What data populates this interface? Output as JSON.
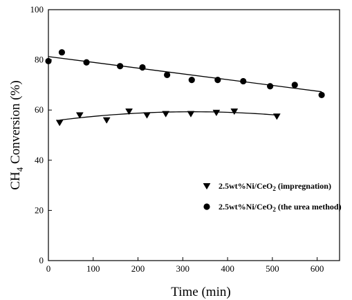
{
  "chart_data": {
    "type": "scatter",
    "xlabel": "Time (min)",
    "ylabel_parts": {
      "ch": "CH",
      "sub": "4",
      "rest": " Conversion (%)"
    },
    "xlim": [
      0,
      650
    ],
    "ylim": [
      0,
      100
    ],
    "xticks": [
      0,
      100,
      200,
      300,
      400,
      500,
      600
    ],
    "yticks": [
      0,
      20,
      40,
      60,
      80,
      100
    ],
    "grid": false,
    "legend_placement": "lower-right",
    "series": [
      {
        "name": "2.5wt%Ni/CeO2 (impregnation)",
        "name_parts": {
          "pre": "2.5wt%Ni/CeO",
          "sub": "2",
          "post": " (impregnation)"
        },
        "marker": "triangle-down",
        "color": "#000000",
        "x": [
          25,
          70,
          130,
          180,
          220,
          262,
          318,
          375,
          415,
          510
        ],
        "y": [
          55,
          58,
          56,
          59.5,
          58,
          58.5,
          58.5,
          59,
          59.5,
          57.5
        ],
        "trend": {
          "type": "quadratic",
          "x_range": [
            25,
            510
          ],
          "points": [
            [
              25,
              56
            ],
            [
              300,
              59.3
            ],
            [
              510,
              58
            ]
          ]
        }
      },
      {
        "name": "2.5wt%Ni/CeO2 (the urea method)",
        "name_parts": {
          "pre": "2.5wt%Ni/CeO",
          "sub": "2",
          "post": " (the urea method)"
        },
        "marker": "circle",
        "color": "#000000",
        "x": [
          0,
          30,
          85,
          160,
          210,
          265,
          320,
          378,
          435,
          495,
          550,
          610
        ],
        "y": [
          79.5,
          83,
          79,
          77.5,
          77,
          74,
          72,
          72,
          71.5,
          69.5,
          70,
          66
        ],
        "trend": {
          "type": "linear",
          "x_range": [
            0,
            610
          ],
          "points": [
            [
              0,
              81.3
            ],
            [
              610,
              67.3
            ]
          ]
        }
      }
    ]
  }
}
